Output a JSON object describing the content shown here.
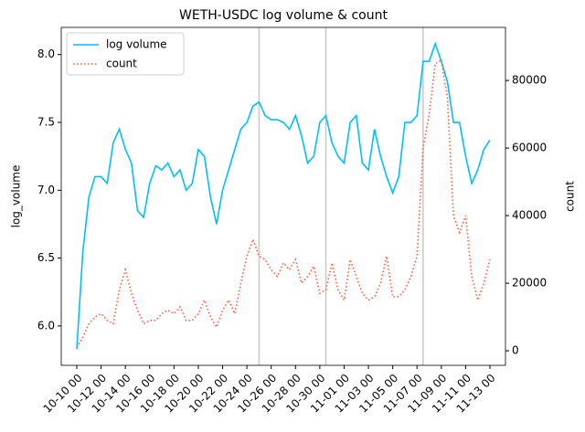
{
  "chart_data": {
    "type": "line",
    "title": "WETH-USDC log volume & count",
    "y_label": "log_volume",
    "y2_label": "count",
    "x": [
      "10-10 00",
      "10-10 12",
      "10-11 00",
      "10-11 12",
      "10-12 00",
      "10-12 12",
      "10-13 00",
      "10-13 12",
      "10-14 00",
      "10-14 12",
      "10-15 00",
      "10-15 12",
      "10-16 00",
      "10-16 12",
      "10-17 00",
      "10-17 12",
      "10-18 00",
      "10-18 12",
      "10-19 00",
      "10-19 12",
      "10-20 00",
      "10-20 12",
      "10-21 00",
      "10-21 12",
      "10-22 00",
      "10-22 12",
      "10-23 00",
      "10-23 12",
      "10-24 00",
      "10-24 12",
      "10-25 00",
      "10-25 12",
      "10-26 00",
      "10-26 12",
      "10-27 00",
      "10-27 12",
      "10-28 00",
      "10-28 12",
      "10-29 00",
      "10-29 12",
      "10-30 00",
      "10-30 12",
      "10-31 00",
      "10-31 12",
      "11-01 00",
      "11-01 12",
      "11-02 00",
      "11-02 12",
      "11-03 00",
      "11-03 12",
      "11-04 00",
      "11-04 12",
      "11-05 00",
      "11-05 12",
      "11-06 00",
      "11-06 12",
      "11-07 00",
      "11-07 12",
      "11-08 00",
      "11-08 12",
      "11-09 00",
      "11-09 12",
      "11-10 00",
      "11-10 12",
      "11-11 00",
      "11-11 12",
      "11-12 00",
      "11-12 12",
      "11-13 00"
    ],
    "xticks": [
      "10-10 00",
      "10-12 00",
      "10-14 00",
      "10-16 00",
      "10-18 00",
      "10-20 00",
      "10-22 00",
      "10-24 00",
      "10-26 00",
      "10-28 00",
      "10-30 00",
      "11-01 00",
      "11-03 00",
      "11-05 00",
      "11-07 00",
      "11-09 00",
      "11-11 00",
      "11-13 00"
    ],
    "vlines": [
      "10-25 00",
      "10-30 12",
      "11-07 12"
    ],
    "ylim": [
      5.71,
      8.2
    ],
    "yticks": [
      {
        "value": 6,
        "label": "6.0"
      },
      {
        "value": 6.5,
        "label": "6.5"
      },
      {
        "value": 7,
        "label": "7.0"
      },
      {
        "value": 7.5,
        "label": "7.5"
      },
      {
        "value": 8,
        "label": "8.0"
      }
    ],
    "y2lim": [
      -4300,
      95700
    ],
    "y2ticks": [
      0,
      20000,
      40000,
      60000,
      80000
    ],
    "legend": "upper left",
    "series": [
      {
        "name": "log volume",
        "color": "#00bfff",
        "linestyle": "solid",
        "axis": "y",
        "values": [
          5.83,
          6.55,
          6.95,
          7.1,
          7.1,
          7.05,
          7.35,
          7.45,
          7.3,
          7.2,
          6.85,
          6.8,
          7.05,
          7.18,
          7.15,
          7.2,
          7.1,
          7.15,
          7.0,
          7.05,
          7.3,
          7.25,
          6.95,
          6.75,
          7.0,
          7.15,
          7.3,
          7.45,
          7.5,
          7.62,
          7.65,
          7.55,
          7.52,
          7.52,
          7.5,
          7.45,
          7.55,
          7.4,
          7.2,
          7.25,
          7.5,
          7.55,
          7.35,
          7.25,
          7.2,
          7.5,
          7.55,
          7.2,
          7.15,
          7.45,
          7.25,
          7.1,
          6.98,
          7.1,
          7.5,
          7.5,
          7.55,
          7.95,
          7.95,
          8.08,
          7.95,
          7.8,
          7.5,
          7.5,
          7.25,
          7.05,
          7.15,
          7.3,
          7.37
        ]
      },
      {
        "name": "count",
        "color": "#ff6347",
        "linestyle": "dotted",
        "axis": "y2",
        "values": [
          1000,
          4000,
          8000,
          10000,
          11000,
          9000,
          8000,
          18000,
          24000,
          17000,
          12000,
          8000,
          9000,
          9000,
          11000,
          12000,
          11000,
          13000,
          9000,
          9000,
          11000,
          15000,
          10000,
          7000,
          12000,
          15000,
          11000,
          20000,
          28000,
          33000,
          28000,
          27000,
          24000,
          22000,
          26000,
          24000,
          27000,
          20000,
          22000,
          25000,
          17000,
          18000,
          26000,
          18000,
          15000,
          27000,
          22000,
          17000,
          15000,
          16000,
          20000,
          28000,
          16000,
          16000,
          18000,
          22000,
          28000,
          60000,
          70000,
          85000,
          86000,
          75000,
          40000,
          35000,
          40000,
          22000,
          15000,
          20000,
          27000
        ]
      }
    ]
  }
}
